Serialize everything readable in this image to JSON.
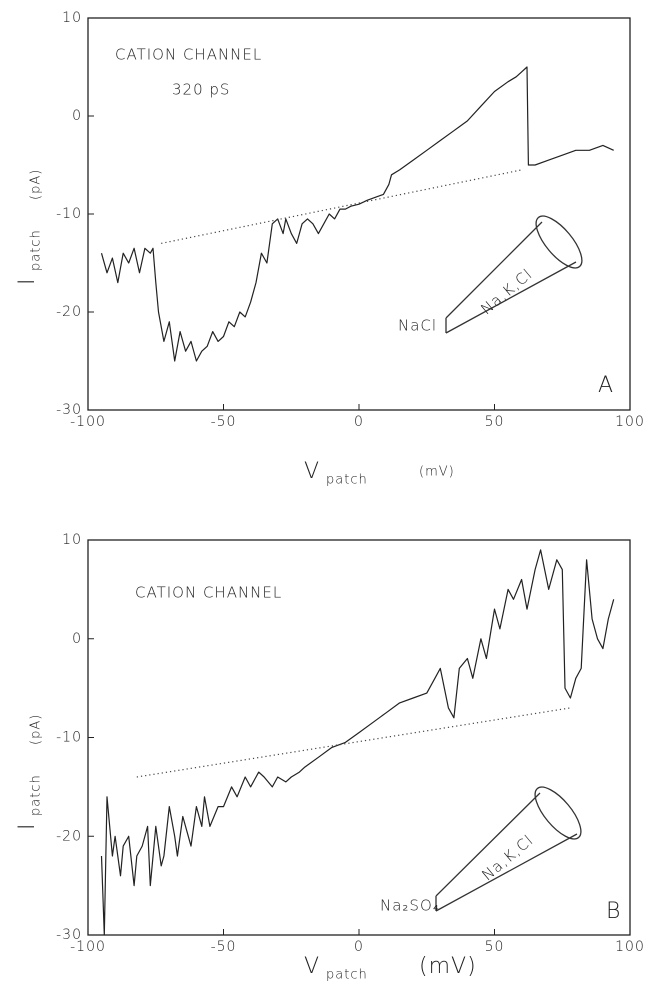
{
  "chart_data": [
    {
      "type": "line",
      "xlim": [
        -100,
        100
      ],
      "ylim": [
        -30,
        10
      ],
      "xticks": [
        -100,
        -50,
        0,
        50,
        100
      ],
      "yticks": [
        -30,
        -20,
        -10,
        0,
        10
      ],
      "xlabel": "V",
      "xlabel_sub": "patch",
      "xlabel_unit": "(mV)",
      "ylabel": "I",
      "ylabel_sub": "patch",
      "ylabel_unit": "(pA)",
      "annotations": [
        "CATION CHANNEL",
        "320 pS",
        "NaCl",
        "Na,K,Cl",
        "A"
      ],
      "series": [
        {
          "color": "#222",
          "style": "solid",
          "x": [
            -95,
            -93,
            -91,
            -89,
            -87,
            -85,
            -83,
            -81,
            -79,
            -77,
            -76,
            -75,
            -74,
            -72,
            -70,
            -68,
            -66,
            -64,
            -62,
            -60,
            -58,
            -56,
            -54,
            -52,
            -50,
            -48,
            -46,
            -44,
            -42,
            -40,
            -38,
            -36,
            -34,
            -32,
            -30,
            -28,
            -27,
            -25,
            -23,
            -21,
            -19,
            -17,
            -15,
            -13,
            -11,
            -9,
            -7,
            -5,
            -3,
            0,
            3,
            6,
            9,
            11,
            12,
            15,
            20,
            25,
            30,
            35,
            40,
            45,
            50,
            55,
            58,
            60,
            62,
            62.5,
            65,
            70,
            75,
            80,
            85,
            90,
            94
          ],
          "values": [
            -14,
            -16,
            -14.5,
            -17,
            -14,
            -15,
            -13.5,
            -16,
            -13.5,
            -14,
            -13.5,
            -17,
            -20,
            -23,
            -21,
            -25,
            -22,
            -24,
            -23,
            -25,
            -24,
            -23.5,
            -22,
            -23,
            -22.5,
            -21,
            -21.5,
            -20,
            -20.5,
            -19,
            -17,
            -14,
            -15,
            -11,
            -10.5,
            -12,
            -10.5,
            -12,
            -13,
            -11,
            -10.5,
            -11,
            -12,
            -11,
            -10,
            -10.5,
            -9.5,
            -9.5,
            -9.2,
            -9,
            -8.6,
            -8.3,
            -8,
            -7,
            -6,
            -5.5,
            -4.5,
            -3.5,
            -2.5,
            -1.5,
            -0.5,
            1,
            2.5,
            3.5,
            4,
            4.5,
            5,
            -5,
            -5,
            -4.5,
            -4,
            -3.5,
            -3.5,
            -3,
            -3.5
          ]
        },
        {
          "color": "#444",
          "style": "dotted",
          "x": [
            -73,
            60
          ],
          "values": [
            -13,
            -5.5
          ]
        }
      ]
    },
    {
      "type": "line",
      "xlim": [
        -100,
        100
      ],
      "ylim": [
        -30,
        10
      ],
      "xticks": [
        -100,
        -50,
        0,
        50,
        100
      ],
      "yticks": [
        -30,
        -20,
        -10,
        0,
        10
      ],
      "xlabel": "V",
      "xlabel_sub": "patch",
      "xlabel_unit": "(mV)",
      "ylabel": "I",
      "ylabel_sub": "patch",
      "ylabel_unit": "(pA)",
      "annotations": [
        "CATION CHANNEL",
        "Na₂SO₄",
        "Na,K,Cl",
        "B"
      ],
      "series": [
        {
          "color": "#222",
          "style": "solid",
          "x": [
            -95,
            -94,
            -93,
            -91,
            -90,
            -88,
            -87,
            -85,
            -83,
            -82,
            -80,
            -78,
            -77,
            -75,
            -73,
            -72,
            -70,
            -68,
            -67,
            -65,
            -63,
            -62,
            -60,
            -58,
            -57,
            -55,
            -52,
            -50,
            -47,
            -45,
            -42,
            -40,
            -37,
            -35,
            -32,
            -30,
            -27,
            -25,
            -22,
            -20,
            -15,
            -10,
            -5,
            0,
            5,
            10,
            15,
            20,
            25,
            28,
            30,
            33,
            35,
            37,
            40,
            42,
            45,
            47,
            50,
            52,
            55,
            57,
            60,
            62,
            65,
            67,
            70,
            73,
            75,
            76,
            78,
            80,
            82,
            84,
            86,
            88,
            90,
            92,
            94
          ],
          "values": [
            -22,
            -30,
            -16,
            -22,
            -20,
            -24,
            -21,
            -20,
            -25,
            -22,
            -21,
            -19,
            -25,
            -19,
            -23,
            -22,
            -17,
            -20,
            -22,
            -18,
            -20,
            -21,
            -17,
            -19,
            -16,
            -19,
            -17,
            -17,
            -15,
            -16,
            -14,
            -15,
            -13.5,
            -14,
            -15,
            -14,
            -14.5,
            -14,
            -13.5,
            -13,
            -12,
            -11,
            -10.5,
            -9.5,
            -8.5,
            -7.5,
            -6.5,
            -6,
            -5.5,
            -4,
            -3,
            -7,
            -8,
            -3,
            -2,
            -4,
            0,
            -2,
            3,
            1,
            5,
            4,
            6,
            3,
            7,
            9,
            5,
            8,
            7,
            -5,
            -6,
            -4,
            -3,
            8,
            2,
            0,
            -1,
            2,
            4
          ]
        },
        {
          "color": "#444",
          "style": "dotted",
          "x": [
            -82,
            78
          ],
          "values": [
            -14,
            -7
          ]
        }
      ]
    }
  ]
}
